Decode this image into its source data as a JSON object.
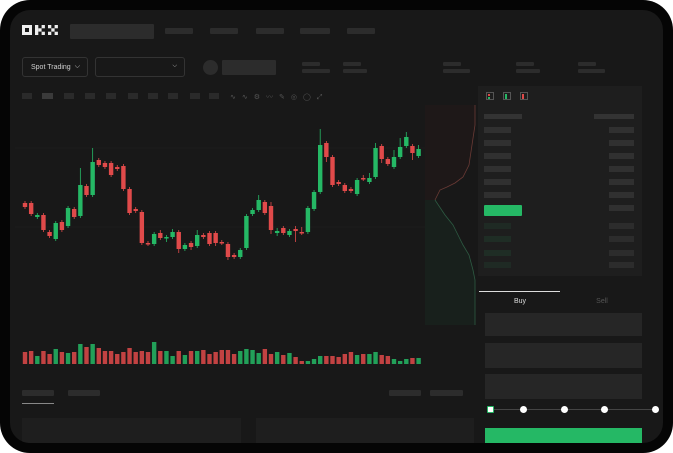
{
  "header": {
    "logo": "OKX"
  },
  "market": {
    "mode_label": "Spot Trading",
    "pair_selector_value": ""
  },
  "trade": {
    "tabs": [
      {
        "label": "Buy",
        "active": true
      },
      {
        "label": "Sell",
        "active": false
      }
    ],
    "leverage_steps": 5,
    "selected_step": 0
  },
  "colors": {
    "up": "#25b865",
    "down": "#e04a4a",
    "background": "#181818",
    "accent": "#25b865"
  },
  "chart_data": {
    "type": "candlestick",
    "candles": [
      [
        97,
        99,
        91,
        93
      ],
      [
        97,
        99,
        84,
        86
      ],
      [
        83,
        87,
        81,
        85
      ],
      [
        85,
        87,
        68,
        70
      ],
      [
        68,
        70,
        62,
        64
      ],
      [
        61,
        79,
        59,
        77
      ],
      [
        78,
        80,
        68,
        70
      ],
      [
        74,
        94,
        72,
        92
      ],
      [
        91,
        93,
        81,
        83
      ],
      [
        84,
        132,
        82,
        115
      ],
      [
        114,
        116,
        103,
        105
      ],
      [
        105,
        152,
        103,
        138
      ],
      [
        140,
        142,
        133,
        135
      ],
      [
        137,
        139,
        131,
        133
      ],
      [
        137,
        139,
        123,
        125
      ],
      [
        133,
        135,
        129,
        131
      ],
      [
        134,
        136,
        109,
        111
      ],
      [
        111,
        113,
        85,
        87
      ],
      [
        91,
        93,
        87,
        89
      ],
      [
        88,
        90,
        55,
        57
      ],
      [
        57,
        59,
        54,
        56
      ],
      [
        56,
        68,
        54,
        66
      ],
      [
        67,
        70,
        60,
        62
      ],
      [
        62,
        65,
        58,
        63
      ],
      [
        63,
        71,
        61,
        68
      ],
      [
        68,
        70,
        47,
        51
      ],
      [
        51,
        57,
        49,
        55
      ],
      [
        57,
        59,
        50,
        53
      ],
      [
        54,
        70,
        52,
        65
      ],
      [
        65,
        67,
        61,
        63
      ],
      [
        67,
        69,
        54,
        56
      ],
      [
        67,
        69,
        54,
        57
      ],
      [
        58,
        60,
        55,
        57
      ],
      [
        56,
        58,
        40,
        43
      ],
      [
        45,
        47,
        41,
        43
      ],
      [
        43,
        52,
        41,
        50
      ],
      [
        52,
        86,
        50,
        84
      ],
      [
        86,
        92,
        84,
        90
      ],
      [
        90,
        105,
        88,
        100
      ],
      [
        98,
        100,
        85,
        87
      ],
      [
        94,
        98,
        66,
        70
      ],
      [
        67,
        72,
        64,
        69
      ],
      [
        72,
        74,
        65,
        67
      ],
      [
        65,
        71,
        63,
        69
      ],
      [
        71,
        74,
        58,
        69
      ],
      [
        68,
        73,
        65,
        67
      ],
      [
        68,
        94,
        66,
        92
      ],
      [
        91,
        110,
        89,
        108
      ],
      [
        108,
        171,
        106,
        155
      ],
      [
        157,
        159,
        138,
        143
      ],
      [
        143,
        145,
        113,
        115
      ],
      [
        118,
        120,
        114,
        116
      ],
      [
        115,
        117,
        107,
        109
      ],
      [
        111,
        113,
        107,
        109
      ],
      [
        106,
        122,
        104,
        120
      ],
      [
        122,
        125,
        119,
        121
      ],
      [
        118,
        127,
        116,
        122
      ],
      [
        123,
        157,
        121,
        152
      ],
      [
        154,
        156,
        137,
        141
      ],
      [
        141,
        143,
        134,
        136
      ],
      [
        133,
        150,
        131,
        143
      ],
      [
        143,
        162,
        141,
        153
      ],
      [
        154,
        168,
        152,
        163
      ],
      [
        154,
        156,
        140,
        147
      ],
      [
        144,
        155,
        142,
        151
      ]
    ],
    "volume": [
      12,
      13,
      8,
      13,
      10,
      15,
      12,
      11,
      12,
      20,
      17,
      20,
      16,
      13,
      13,
      10,
      12,
      16,
      12,
      13,
      12,
      22,
      13,
      13,
      8,
      13,
      9,
      13,
      13,
      14,
      10,
      12,
      14,
      14,
      10,
      13,
      15,
      14,
      11,
      15,
      10,
      12,
      9,
      11,
      7,
      3,
      3,
      5,
      8,
      8,
      8,
      7,
      10,
      12,
      9,
      10,
      10,
      12,
      9,
      8,
      5,
      3,
      5,
      6,
      6
    ]
  }
}
